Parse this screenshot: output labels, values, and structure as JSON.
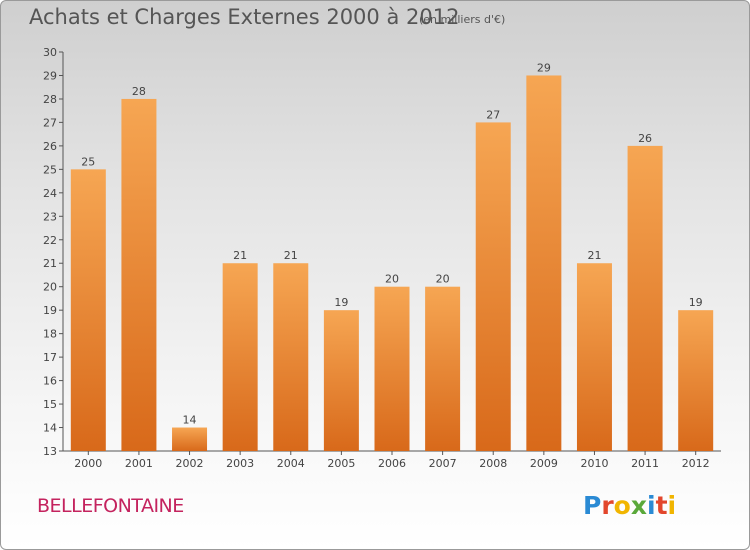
{
  "title": "Achats et Charges Externes 2000 à 2012",
  "subtitle": "(en milliers d'€)",
  "place": "BELLEFONTAINE",
  "logo": {
    "letters": [
      "P",
      "r",
      "o",
      "x",
      "i",
      "t",
      "i"
    ],
    "colors": [
      "#2a8ad4",
      "#e2462c",
      "#f1b500",
      "#5aa83a",
      "#2a8ad4",
      "#e2462c",
      "#f1b500"
    ]
  },
  "colors": {
    "bar_top": "#f6a653",
    "bar_bottom": "#d8691a",
    "title": "#555555",
    "place": "#c4235e"
  },
  "chart_data": {
    "type": "bar",
    "title": "Achats et Charges Externes 2000 à 2012",
    "subtitle": "(en milliers d'€)",
    "xlabel": "",
    "ylabel": "",
    "categories": [
      "2000",
      "2001",
      "2002",
      "2003",
      "2004",
      "2005",
      "2006",
      "2007",
      "2008",
      "2009",
      "2010",
      "2011",
      "2012"
    ],
    "values": [
      25,
      28,
      14,
      21,
      21,
      19,
      20,
      20,
      27,
      29,
      21,
      26,
      19
    ],
    "ylim": [
      13,
      30
    ],
    "yticks": [
      13,
      14,
      15,
      16,
      17,
      18,
      19,
      20,
      21,
      22,
      23,
      24,
      25,
      26,
      27,
      28,
      29,
      30
    ],
    "grid": false,
    "legend": "none"
  }
}
